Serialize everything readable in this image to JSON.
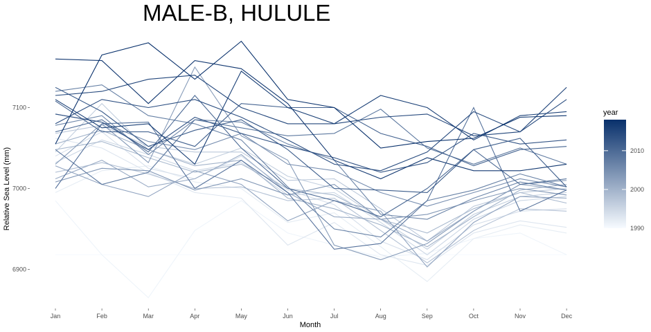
{
  "chart_data": {
    "type": "line",
    "title": "MALE-B, HULULE",
    "xlabel": "Month",
    "ylabel": "Relative Sea Level (mm)",
    "categories": [
      "Jan",
      "Feb",
      "Mar",
      "Apr",
      "May",
      "Jun",
      "Jul",
      "Aug",
      "Sep",
      "Oct",
      "Nov",
      "Dec"
    ],
    "y_ticks": [
      6900,
      7000,
      7100
    ],
    "ylim": [
      6850,
      7200
    ],
    "grid": false,
    "color_scale": {
      "variable": "year",
      "min": 1990,
      "max": 2018,
      "low_color": "#f7fbff",
      "high_color": "#08306b",
      "ticks": [
        1990,
        2000,
        2010
      ]
    },
    "legend": {
      "title": "year",
      "position": "right"
    },
    "series": [
      {
        "year": 1990,
        "values": [
          6918,
          6918,
          6918,
          6918,
          6918,
          6918,
          6918,
          6918,
          6918,
          6918,
          6918,
          6918
        ]
      },
      {
        "year": 1991,
        "values": [
          6985,
          6918,
          6865,
          6948,
          6985,
          6945,
          6930,
          6915,
          6920,
          6938,
          6945,
          6918
        ]
      },
      {
        "year": 1992,
        "values": [
          6995,
          7022,
          7028,
          7008,
          7000,
          6958,
          6970,
          6928,
          6885,
          6938,
          6955,
          6945
        ]
      },
      {
        "year": 1993,
        "values": [
          7062,
          7050,
          7020,
          6995,
          6988,
          6930,
          6958,
          6918,
          6905,
          6945,
          6960,
          6952
        ]
      },
      {
        "year": 1994,
        "values": [
          7040,
          7070,
          7025,
          7012,
          7040,
          6998,
          6980,
          6935,
          6912,
          6955,
          6972,
          6975
        ]
      },
      {
        "year": 1995,
        "values": [
          7032,
          7060,
          7042,
          7022,
          7032,
          6992,
          6995,
          6958,
          6918,
          6962,
          6985,
          6990
        ]
      },
      {
        "year": 1996,
        "values": [
          7045,
          7105,
          7048,
          7030,
          7050,
          7015,
          7000,
          6962,
          6925,
          6968,
          6990,
          6995
        ]
      },
      {
        "year": 1997,
        "values": [
          7068,
          7078,
          7052,
          7045,
          7045,
          7010,
          7012,
          6975,
          6935,
          6978,
          6995,
          7000
        ]
      },
      {
        "year": 1998,
        "values": [
          7020,
          7032,
          7018,
          7000,
          7002,
          6985,
          6988,
          6948,
          6908,
          6948,
          6975,
          6972
        ]
      },
      {
        "year": 1999,
        "values": [
          7048,
          7058,
          7038,
          7020,
          7030,
          7000,
          6992,
          6962,
          6945,
          6975,
          6995,
          6982
        ]
      },
      {
        "year": 2000,
        "values": [
          7055,
          7072,
          7048,
          7028,
          7035,
          6988,
          6975,
          6955,
          6928,
          6965,
          6998,
          7005
        ]
      },
      {
        "year": 2001,
        "values": [
          7012,
          7035,
          7002,
          7012,
          7042,
          6995,
          6965,
          6962,
          6935,
          6972,
          7005,
          6998
        ]
      },
      {
        "year": 2002,
        "values": [
          7028,
          7005,
          6990,
          7022,
          7005,
          6960,
          6985,
          6972,
          6903,
          6958,
          6990,
          6988
        ]
      },
      {
        "year": 2003,
        "values": [
          7030,
          7080,
          7032,
          7150,
          7065,
          7035,
          6930,
          6912,
          6932,
          6972,
          7005,
          7010
        ]
      },
      {
        "year": 2004,
        "values": [
          7008,
          7025,
          7022,
          6998,
          7012,
          6992,
          7005,
          6962,
          6968,
          6985,
          7000,
          6992
        ]
      },
      {
        "year": 2005,
        "values": [
          7092,
          7082,
          7058,
          7048,
          7068,
          7030,
          7022,
          6995,
          6978,
          6995,
          7012,
          7002
        ]
      },
      {
        "year": 2006,
        "values": [
          7078,
          7090,
          7042,
          7085,
          7082,
          7055,
          7035,
          6968,
          6962,
          6988,
          7008,
          6998
        ]
      },
      {
        "year": 2007,
        "values": [
          7120,
          7128,
          7090,
          7080,
          7060,
          7002,
          6950,
          6940,
          6985,
          6998,
          7018,
          7002
        ]
      },
      {
        "year": 2008,
        "values": [
          7048,
          7005,
          7020,
          7085,
          7075,
          7065,
          7068,
          7098,
          7050,
          7030,
          7050,
          7030
        ]
      },
      {
        "year": 2009,
        "values": [
          7000,
          7080,
          7082,
          7000,
          7035,
          6995,
          6925,
          6932,
          6985,
          7100,
          6972,
          6998
        ]
      },
      {
        "year": 2010,
        "values": [
          7070,
          7085,
          7045,
          7115,
          7050,
          7000,
          6985,
          6965,
          7000,
          7048,
          7005,
          7012
        ]
      },
      {
        "year": 2011,
        "values": [
          7108,
          7070,
          7070,
          7052,
          7105,
          7100,
          7100,
          7068,
          7052,
          7028,
          7048,
          7052
        ]
      },
      {
        "year": 2012,
        "values": [
          7125,
          7095,
          7052,
          7072,
          7085,
          7048,
          7000,
          6998,
          6995,
          7048,
          7062,
          7002
        ]
      },
      {
        "year": 2013,
        "values": [
          7092,
          7082,
          7048,
          7088,
          7068,
          7052,
          7038,
          7020,
          7032,
          7068,
          7055,
          7060
        ]
      },
      {
        "year": 2014,
        "values": [
          7080,
          7110,
          7100,
          7110,
          7088,
          7060,
          7030,
          7022,
          7045,
          7095,
          7070,
          7110
        ]
      },
      {
        "year": 2015,
        "values": [
          7115,
          7120,
          7135,
          7140,
          7100,
          7080,
          7080,
          7088,
          7092,
          7065,
          7070,
          7125
        ]
      },
      {
        "year": 2016,
        "values": [
          7110,
          7075,
          7080,
          7030,
          7145,
          7100,
          7080,
          7115,
          7100,
          7060,
          7090,
          7095
        ]
      },
      {
        "year": 2017,
        "values": [
          7160,
          7158,
          7105,
          7158,
          7148,
          7105,
          7035,
          7012,
          7038,
          7022,
          7022,
          7030
        ]
      },
      {
        "year": 2018,
        "values": [
          7055,
          7165,
          7180,
          7135,
          7182,
          7110,
          7100,
          7050,
          7058,
          7062,
          7088,
          7090
        ]
      }
    ]
  }
}
